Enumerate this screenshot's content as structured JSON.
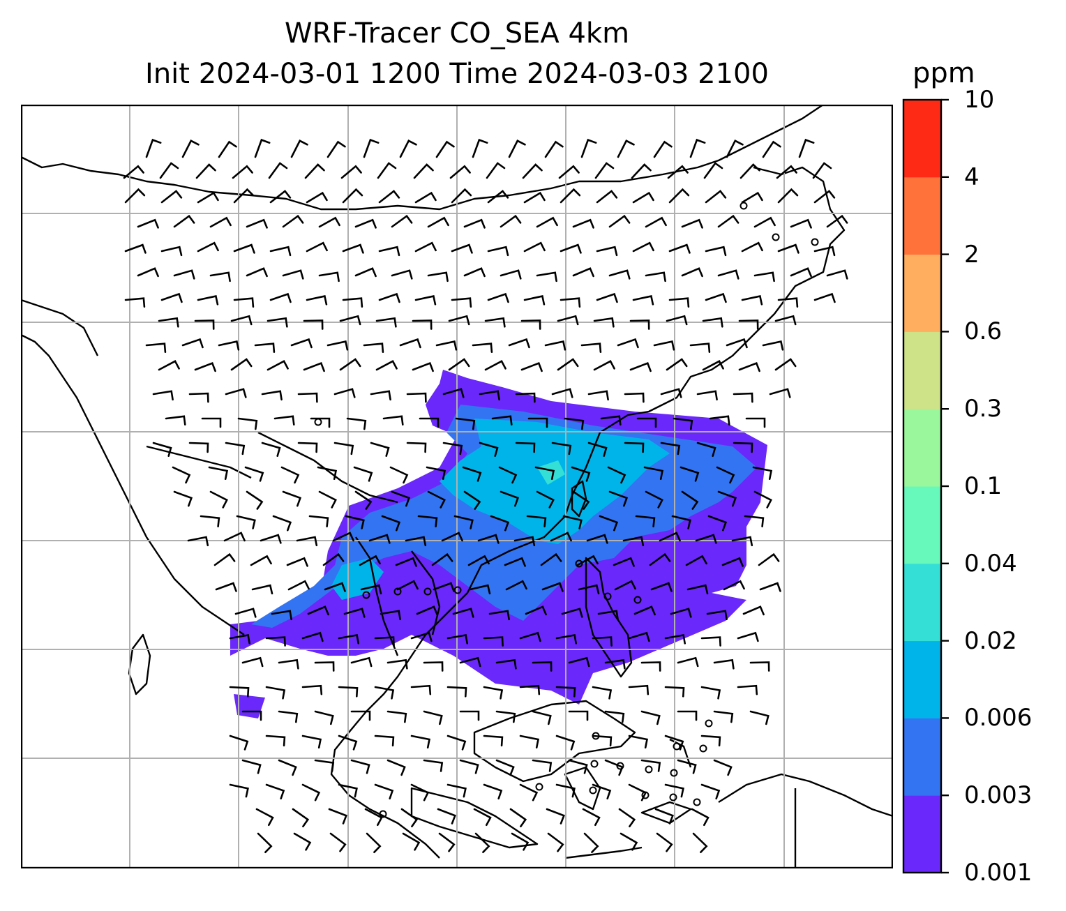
{
  "title_line1": "WRF-Tracer CO_SEA 4km",
  "title_line2": "Init 2024-03-01 1200 Time 2024-03-03 2100",
  "colorbar": {
    "unit": "ppm",
    "levels": [
      "0.001",
      "0.003",
      "0.006",
      "0.02",
      "0.04",
      "0.1",
      "0.3",
      "0.6",
      "2",
      "4",
      "10"
    ],
    "colors": [
      "#6a28fa",
      "#3374f2",
      "#00b4ea",
      "#34dfd6",
      "#67f8bc",
      "#9bf79b",
      "#cee288",
      "#ffae5f",
      "#ff733b",
      "#ff2a15"
    ]
  },
  "map": {
    "gridlines": true,
    "layers": [
      "coastlines",
      "country-borders",
      "co-tracer-concentration",
      "wind-barbs"
    ],
    "colors": {
      "coast": "#000000",
      "grid": "#b0b0b0",
      "low": "#6a28fa",
      "mid": "#3374f2",
      "high": "#00b4ea",
      "peak": "#34dfd6"
    }
  }
}
